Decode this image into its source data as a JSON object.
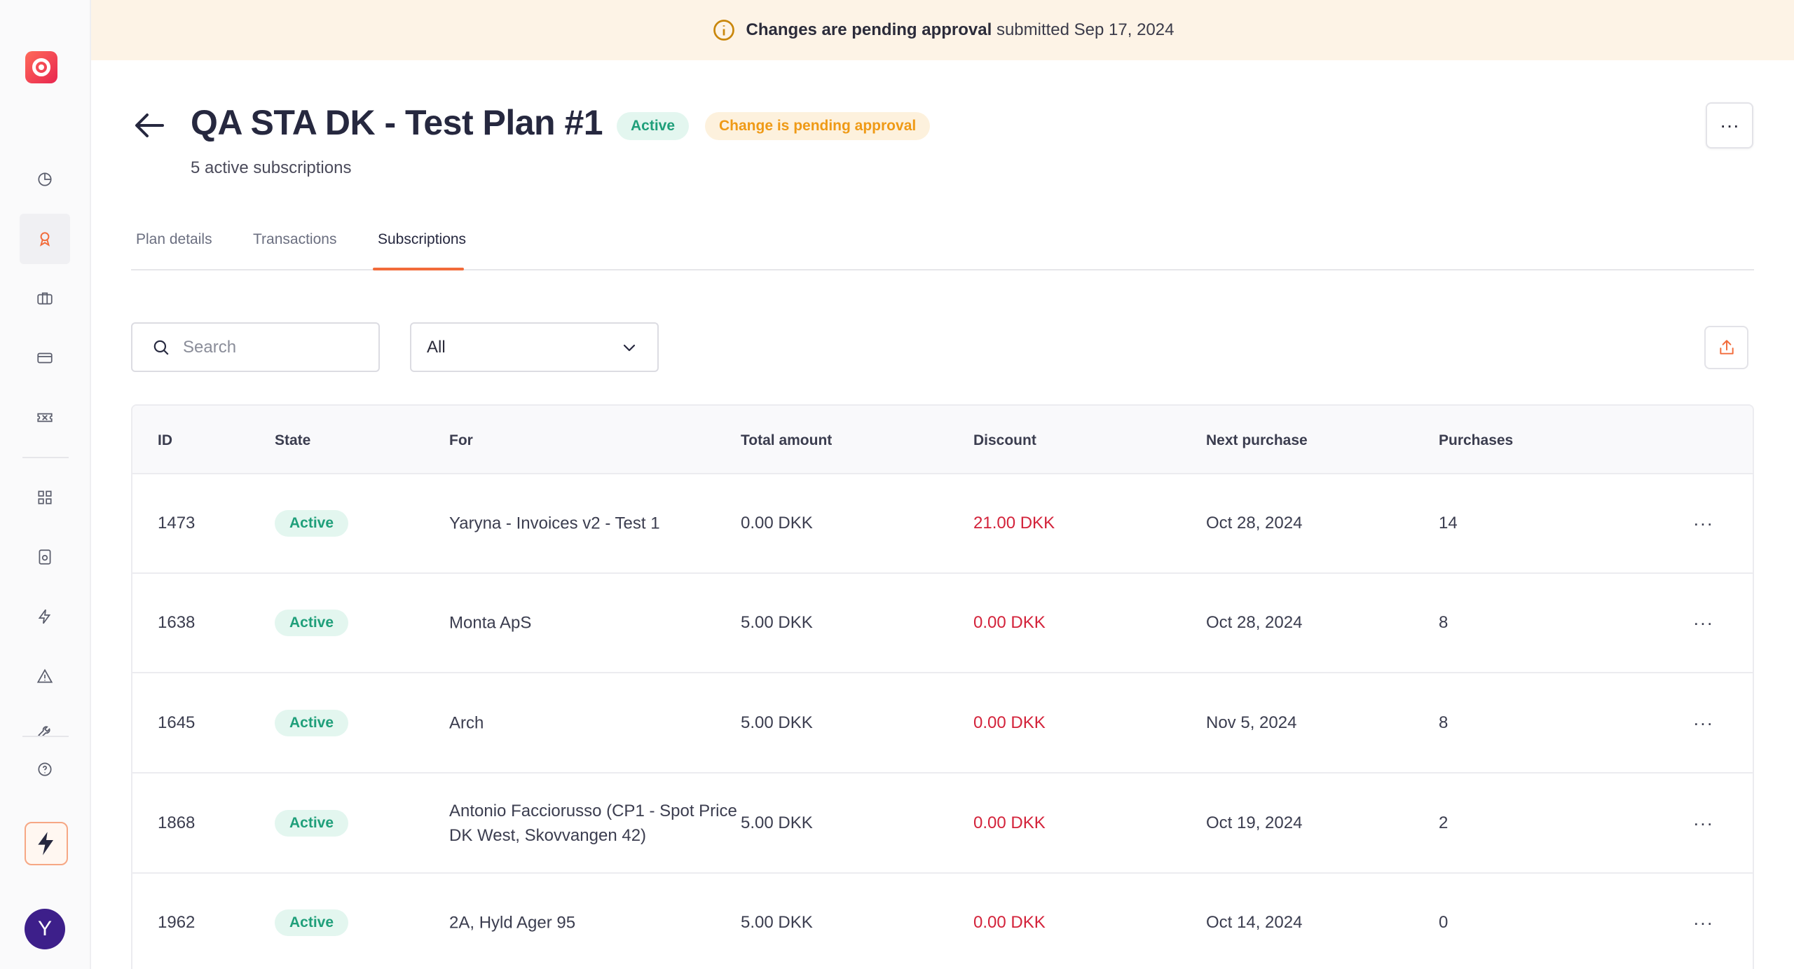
{
  "banner": {
    "bold": "Changes are pending approval",
    "rest": "submitted Sep 17, 2024"
  },
  "header": {
    "title": "QA STA DK - Test Plan #1",
    "status": "Active",
    "pending": "Change is pending approval",
    "subtitle": "5 active subscriptions",
    "more": "···"
  },
  "tabs": [
    {
      "label": "Plan details"
    },
    {
      "label": "Transactions"
    },
    {
      "label": "Subscriptions"
    }
  ],
  "toolbar": {
    "search_placeholder": "Search",
    "filter_value": "All"
  },
  "table": {
    "columns": [
      "ID",
      "State",
      "For",
      "Total amount",
      "Discount",
      "Next purchase",
      "Purchases"
    ],
    "rows": [
      {
        "id": "1473",
        "state": "Active",
        "for": "Yaryna -  Invoices v2 - Test 1",
        "for2": "",
        "total": "0.00 DKK",
        "discount": "21.00 DKK",
        "next": "Oct 28, 2024",
        "purchases": "14",
        "more": "···"
      },
      {
        "id": "1638",
        "state": "Active",
        "for": "Monta ApS",
        "for2": "",
        "total": "5.00 DKK",
        "discount": "0.00 DKK",
        "next": "Oct 28, 2024",
        "purchases": "8",
        "more": "···"
      },
      {
        "id": "1645",
        "state": "Active",
        "for": "Arch",
        "for2": "",
        "total": "5.00 DKK",
        "discount": "0.00 DKK",
        "next": "Nov 5, 2024",
        "purchases": "8",
        "more": "···"
      },
      {
        "id": "1868",
        "state": "Active",
        "for": "Antonio Facciorusso (CP1 - Spot Price",
        "for2": "DK West, Skovvangen 42)",
        "total": "5.00 DKK",
        "discount": "0.00 DKK",
        "next": "Oct 19, 2024",
        "purchases": "2",
        "more": "···"
      },
      {
        "id": "1962",
        "state": "Active",
        "for": "2A, Hyld Ager 95",
        "for2": "",
        "total": "5.00 DKK",
        "discount": "0.00 DKK",
        "next": "Oct 14, 2024",
        "purchases": "0",
        "more": "···"
      }
    ]
  },
  "user": {
    "initial": "Y"
  },
  "colors": {
    "accent": "#f26b3a",
    "success": "#1f9f7a",
    "warning": "#ef9a16",
    "danger": "#d3223a",
    "avatar": "#3d1f8a"
  },
  "icons": {
    "sidebar": [
      "dashboard-icon",
      "plans-icon",
      "briefcase-icon",
      "card-icon",
      "ticket-icon",
      "grid-icon",
      "device-icon",
      "lightning-icon",
      "warning-icon",
      "tools-icon",
      "help-icon"
    ]
  }
}
